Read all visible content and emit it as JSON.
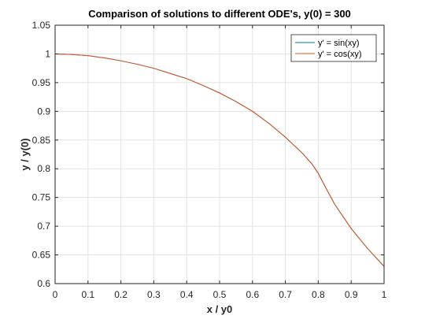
{
  "chart_data": {
    "type": "line",
    "title": "Comparison of solutions to different ODE's, y(0) = 300",
    "xlabel": "x / y0",
    "ylabel": "y / y(0)",
    "xlim": [
      0,
      1
    ],
    "ylim": [
      0.6,
      1.05
    ],
    "xticks": [
      0,
      0.1,
      0.2,
      0.3,
      0.4,
      0.5,
      0.6,
      0.7,
      0.8,
      0.9,
      1
    ],
    "yticks": [
      0.6,
      0.65,
      0.7,
      0.75,
      0.8,
      0.85,
      0.9,
      0.95,
      1,
      1.05
    ],
    "xtick_labels": [
      "0",
      "0.1",
      "0.2",
      "0.3",
      "0.4",
      "0.5",
      "0.6",
      "0.7",
      "0.8",
      "0.9",
      "1"
    ],
    "ytick_labels": [
      "0.6",
      "0.65",
      "0.7",
      "0.75",
      "0.8",
      "0.85",
      "0.9",
      "0.95",
      "1",
      "1.05"
    ],
    "grid": true,
    "legend_position": "top-right",
    "series": [
      {
        "name": "y' = sin(xy)",
        "color": "#0072BD",
        "x": [
          0,
          0.05,
          0.1,
          0.15,
          0.2,
          0.25,
          0.3,
          0.35,
          0.4,
          0.45,
          0.5,
          0.55,
          0.6,
          0.65,
          0.7,
          0.75,
          0.78,
          0.8,
          0.82,
          0.85,
          0.9,
          0.95,
          1.0
        ],
        "y": [
          1.0,
          0.999,
          0.997,
          0.993,
          0.988,
          0.982,
          0.975,
          0.966,
          0.957,
          0.945,
          0.932,
          0.917,
          0.9,
          0.879,
          0.855,
          0.828,
          0.809,
          0.792,
          0.77,
          0.738,
          0.696,
          0.661,
          0.63
        ]
      },
      {
        "name": "y' = cos(xy)",
        "color": "#D95319",
        "x": [
          0,
          0.05,
          0.1,
          0.15,
          0.2,
          0.25,
          0.3,
          0.35,
          0.4,
          0.45,
          0.5,
          0.55,
          0.6,
          0.65,
          0.7,
          0.75,
          0.78,
          0.8,
          0.82,
          0.85,
          0.9,
          0.95,
          1.0
        ],
        "y": [
          1.0,
          0.999,
          0.997,
          0.993,
          0.988,
          0.982,
          0.975,
          0.966,
          0.957,
          0.945,
          0.932,
          0.917,
          0.9,
          0.879,
          0.855,
          0.828,
          0.809,
          0.792,
          0.77,
          0.738,
          0.696,
          0.661,
          0.63
        ]
      }
    ]
  }
}
